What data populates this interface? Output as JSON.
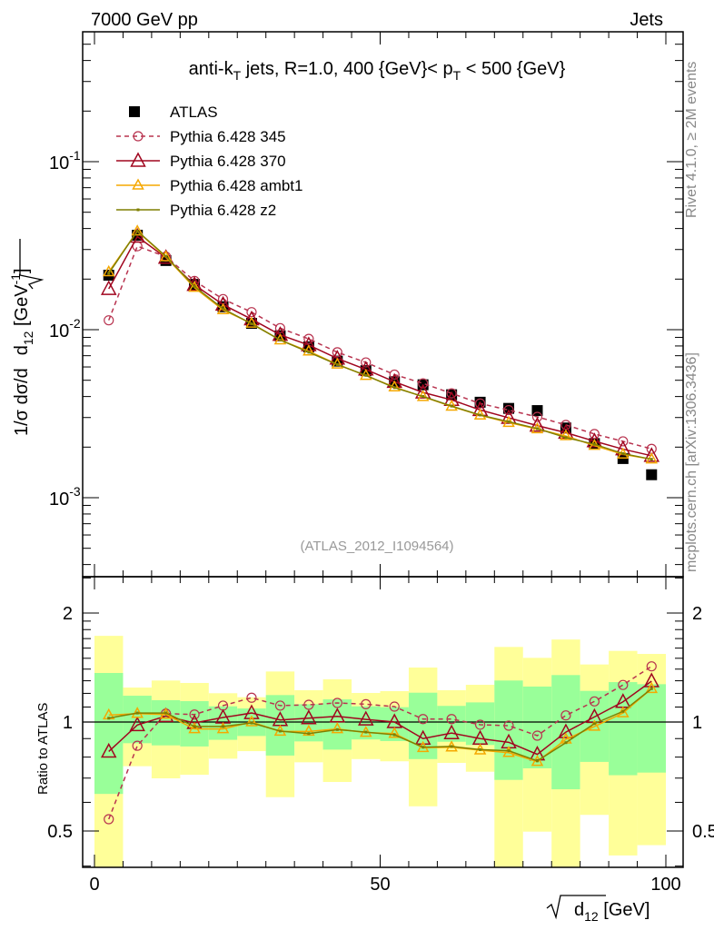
{
  "header": {
    "left": "7000 GeV pp",
    "right": "Jets"
  },
  "side_labels": {
    "rivet": "Rivet 4.1.0, ≥ 2M events",
    "mcplots": "mcplots.cern.ch [arXiv:1306.3436]"
  },
  "analysis_id": "(ATLAS_2012_I1094564)",
  "chart_data": {
    "type": "line",
    "title_parts": [
      "anti-k",
      "T",
      " jets, R=1.0, 400 {GeV}< p",
      "T",
      " < 500 {GeV}"
    ],
    "xlabel_parts": [
      "d",
      "12",
      " [GeV]"
    ],
    "ylabel_parts": [
      "1/σ dσ/d",
      "d",
      "12",
      " [GeV",
      "-1",
      "]"
    ],
    "ratio_ylabel": "Ratio to ATLAS",
    "xlim": [
      -2,
      103
    ],
    "ylim_main": [
      0.00034,
      0.59
    ],
    "ylim_ratio": [
      0.397,
      2.52
    ],
    "y_scale": "log",
    "x_tick_labels": [
      "0",
      "50",
      "100"
    ],
    "main_y_tick_labels": [
      {
        "base": "10",
        "exp": "-1",
        "value": 0.1
      },
      {
        "base": "10",
        "exp": "-2",
        "value": 0.01
      },
      {
        "base": "10",
        "exp": "-3",
        "value": 0.001
      }
    ],
    "ratio_y_tick_labels": [
      {
        "label": "2",
        "value": 2
      },
      {
        "label": "1",
        "value": 1
      },
      {
        "label": "0.5",
        "value": 0.5
      }
    ],
    "x": [
      2.5,
      7.5,
      12.5,
      17.5,
      22.5,
      27.5,
      32.5,
      37.5,
      42.5,
      47.5,
      52.5,
      57.5,
      62.5,
      67.5,
      72.5,
      77.5,
      82.5,
      87.5,
      92.5,
      97.5
    ],
    "data": {
      "name": "ATLAS",
      "values": [
        0.0211,
        0.0365,
        0.0258,
        0.0186,
        0.0137,
        0.0109,
        0.0092,
        0.0079,
        0.0065,
        0.0057,
        0.0049,
        0.0047,
        0.0041,
        0.0037,
        0.0034,
        0.0033,
        0.0026,
        0.0021,
        0.00171,
        0.00137
      ]
    },
    "band_stat": {
      "lower": [
        0.633,
        0.874,
        0.862,
        0.856,
        0.893,
        0.915,
        0.808,
        0.884,
        0.839,
        0.895,
        0.886,
        0.79,
        0.882,
        0.864,
        0.692,
        0.745,
        0.652,
        0.776,
        0.713,
        0.725
      ],
      "upper": [
        1.366,
        1.182,
        1.149,
        1.142,
        1.105,
        1.09,
        1.187,
        1.12,
        1.155,
        1.105,
        1.099,
        1.205,
        1.108,
        1.133,
        1.302,
        1.253,
        1.348,
        1.219,
        1.289,
        1.272
      ]
    },
    "band_total": {
      "lower": [
        0.35,
        0.755,
        0.699,
        0.715,
        0.792,
        0.831,
        0.62,
        0.774,
        0.683,
        0.79,
        0.779,
        0.585,
        0.771,
        0.729,
        0.35,
        0.498,
        0.35,
        0.554,
        0.428,
        0.457
      ],
      "upper": [
        1.73,
        1.245,
        1.302,
        1.282,
        1.201,
        1.171,
        1.379,
        1.224,
        1.312,
        1.203,
        1.217,
        1.414,
        1.224,
        1.267,
        1.612,
        1.504,
        1.69,
        1.442,
        1.572,
        1.542
      ]
    },
    "series": [
      {
        "name": "Pythia 6.428 345",
        "color": "#b8334f",
        "marker": "circle",
        "dash": true,
        "ratio": [
          0.539,
          0.86,
          1.055,
          1.049,
          1.11,
          1.167,
          1.11,
          1.116,
          1.129,
          1.12,
          1.103,
          1.019,
          1.019,
          0.983,
          0.977,
          0.917,
          1.043,
          1.14,
          1.266,
          1.425
        ]
      },
      {
        "name": "Pythia 6.428 370",
        "color": "#a0061f",
        "marker": "triangle-large",
        "dash": false,
        "ratio": [
          0.829,
          0.981,
          1.039,
          0.994,
          1.029,
          1.059,
          1.013,
          1.025,
          1.037,
          1.017,
          1.0,
          0.9,
          0.932,
          0.9,
          0.879,
          0.814,
          0.938,
          1.033,
          1.137,
          1.297
        ]
      },
      {
        "name": "Pythia 6.428 ambt1",
        "color": "#f5a800",
        "marker": "triangle-small",
        "dash": false,
        "ratio": [
          1.045,
          1.055,
          1.049,
          0.957,
          0.957,
          1.0,
          0.942,
          0.942,
          0.957,
          0.935,
          0.929,
          0.849,
          0.852,
          0.836,
          0.823,
          0.777,
          0.896,
          0.972,
          1.059,
          1.236
        ]
      },
      {
        "name": "Pythia 6.428 z2",
        "color": "#7f7f00",
        "marker": "dot",
        "dash": false,
        "ratio": [
          1.025,
          1.059,
          1.059,
          0.972,
          0.972,
          0.994,
          0.944,
          0.929,
          0.953,
          0.938,
          0.922,
          0.852,
          0.856,
          0.839,
          0.833,
          0.781,
          0.877,
          0.99,
          1.07,
          1.236
        ]
      }
    ],
    "band_colors": {
      "stat": "#99ff99",
      "total": "#ffff99"
    },
    "legend_placement": "top-left"
  }
}
